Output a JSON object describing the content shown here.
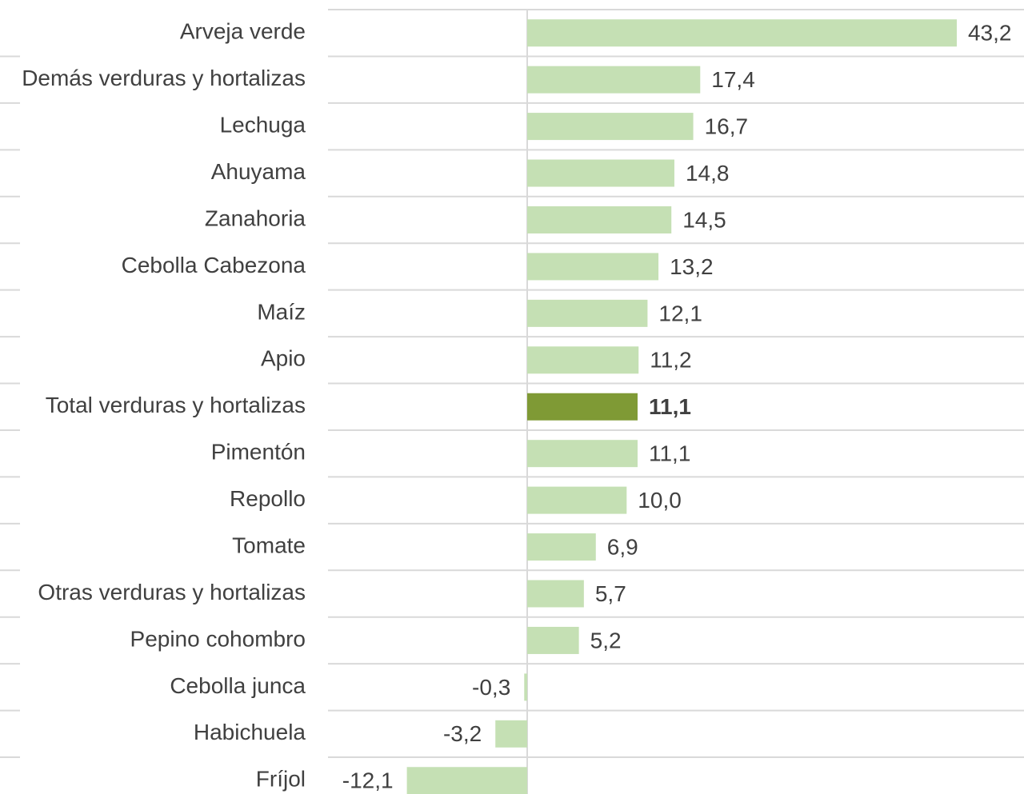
{
  "chart_data": {
    "type": "bar",
    "orientation": "horizontal",
    "categories": [
      "Arveja verde",
      "Demás verduras y hortalizas",
      "Lechuga",
      "Ahuyama",
      "Zanahoria",
      "Cebolla Cabezona",
      "Maíz",
      "Apio",
      "Total verduras y hortalizas",
      "Pimentón",
      "Repollo",
      "Tomate",
      "Otras verduras y hortalizas",
      "Pepino cohombro",
      "Cebolla junca",
      "Habichuela",
      "Fríjol"
    ],
    "values": [
      43.2,
      17.4,
      16.7,
      14.8,
      14.5,
      13.2,
      12.1,
      11.2,
      11.1,
      11.1,
      10.0,
      6.9,
      5.7,
      5.2,
      -0.3,
      -3.2,
      -12.1
    ],
    "value_labels": [
      "43,2",
      "17,4",
      "16,7",
      "14,8",
      "14,5",
      "13,2",
      "12,1",
      "11,2",
      "11,1",
      "11,1",
      "10,0",
      "6,9",
      "5,7",
      "5,2",
      "-0,3",
      "-3,2",
      "-12,1"
    ],
    "color": "#c5e0b4",
    "highlight": {
      "index": 8,
      "color": "#7f9a35"
    }
  }
}
